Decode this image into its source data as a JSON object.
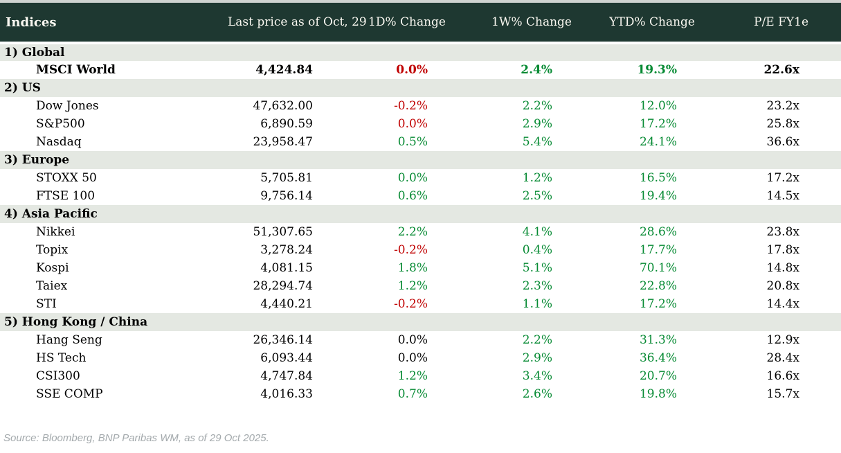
{
  "table": {
    "columns": [
      "Indices",
      "Last price as of Oct, 29",
      "1D% Change",
      "1W% Change",
      "YTD% Change",
      "P/E FY1e"
    ],
    "sections": [
      {
        "label": "1) Global",
        "rows": [
          {
            "name": "MSCI World",
            "bold": true,
            "price": "4,424.84",
            "d1": {
              "value": "0.0%",
              "trend": "down"
            },
            "w1": {
              "value": "2.4%",
              "trend": "up"
            },
            "ytd": {
              "value": "19.3%",
              "trend": "up"
            },
            "pe": "22.6x"
          }
        ]
      },
      {
        "label": "2) US",
        "rows": [
          {
            "name": "Dow Jones",
            "bold": false,
            "price": "47,632.00",
            "d1": {
              "value": "-0.2%",
              "trend": "down"
            },
            "w1": {
              "value": "2.2%",
              "trend": "up"
            },
            "ytd": {
              "value": "12.0%",
              "trend": "up"
            },
            "pe": "23.2x"
          },
          {
            "name": "S&P500",
            "bold": false,
            "price": "6,890.59",
            "d1": {
              "value": "0.0%",
              "trend": "down"
            },
            "w1": {
              "value": "2.9%",
              "trend": "up"
            },
            "ytd": {
              "value": "17.2%",
              "trend": "up"
            },
            "pe": "25.8x"
          },
          {
            "name": "Nasdaq",
            "bold": false,
            "price": "23,958.47",
            "d1": {
              "value": "0.5%",
              "trend": "up"
            },
            "w1": {
              "value": "5.4%",
              "trend": "up"
            },
            "ytd": {
              "value": "24.1%",
              "trend": "up"
            },
            "pe": "36.6x"
          }
        ]
      },
      {
        "label": "3) Europe",
        "rows": [
          {
            "name": "STOXX 50",
            "bold": false,
            "price": "5,705.81",
            "d1": {
              "value": "0.0%",
              "trend": "up"
            },
            "w1": {
              "value": "1.2%",
              "trend": "up"
            },
            "ytd": {
              "value": "16.5%",
              "trend": "up"
            },
            "pe": "17.2x"
          },
          {
            "name": "FTSE 100",
            "bold": false,
            "price": "9,756.14",
            "d1": {
              "value": "0.6%",
              "trend": "up"
            },
            "w1": {
              "value": "2.5%",
              "trend": "up"
            },
            "ytd": {
              "value": "19.4%",
              "trend": "up"
            },
            "pe": "14.5x"
          }
        ]
      },
      {
        "label": "4) Asia Pacific",
        "rows": [
          {
            "name": "Nikkei",
            "bold": false,
            "price": "51,307.65",
            "d1": {
              "value": "2.2%",
              "trend": "up"
            },
            "w1": {
              "value": "4.1%",
              "trend": "up"
            },
            "ytd": {
              "value": "28.6%",
              "trend": "up"
            },
            "pe": "23.8x"
          },
          {
            "name": "Topix",
            "bold": false,
            "price": "3,278.24",
            "d1": {
              "value": "-0.2%",
              "trend": "down"
            },
            "w1": {
              "value": "0.4%",
              "trend": "up"
            },
            "ytd": {
              "value": "17.7%",
              "trend": "up"
            },
            "pe": "17.8x"
          },
          {
            "name": "Kospi",
            "bold": false,
            "price": "4,081.15",
            "d1": {
              "value": "1.8%",
              "trend": "up"
            },
            "w1": {
              "value": "5.1%",
              "trend": "up"
            },
            "ytd": {
              "value": "70.1%",
              "trend": "up"
            },
            "pe": "14.8x"
          },
          {
            "name": "Taiex",
            "bold": false,
            "price": "28,294.74",
            "d1": {
              "value": "1.2%",
              "trend": "up"
            },
            "w1": {
              "value": "2.3%",
              "trend": "up"
            },
            "ytd": {
              "value": "22.8%",
              "trend": "up"
            },
            "pe": "20.8x"
          },
          {
            "name": "STI",
            "bold": false,
            "price": "4,440.21",
            "d1": {
              "value": "-0.2%",
              "trend": "down"
            },
            "w1": {
              "value": "1.1%",
              "trend": "up"
            },
            "ytd": {
              "value": "17.2%",
              "trend": "up"
            },
            "pe": "14.4x"
          }
        ]
      },
      {
        "label": "5) Hong Kong / China",
        "rows": [
          {
            "name": "Hang Seng",
            "bold": false,
            "price": "26,346.14",
            "d1": {
              "value": "0.0%",
              "trend": "flat"
            },
            "w1": {
              "value": "2.2%",
              "trend": "up"
            },
            "ytd": {
              "value": "31.3%",
              "trend": "up"
            },
            "pe": "12.9x"
          },
          {
            "name": "HS Tech",
            "bold": false,
            "price": "6,093.44",
            "d1": {
              "value": "0.0%",
              "trend": "flat"
            },
            "w1": {
              "value": "2.9%",
              "trend": "up"
            },
            "ytd": {
              "value": "36.4%",
              "trend": "up"
            },
            "pe": "28.4x"
          },
          {
            "name": "CSI300",
            "bold": false,
            "price": "4,747.84",
            "d1": {
              "value": "1.2%",
              "trend": "up"
            },
            "w1": {
              "value": "3.4%",
              "trend": "up"
            },
            "ytd": {
              "value": "20.7%",
              "trend": "up"
            },
            "pe": "16.6x"
          },
          {
            "name": "SSE COMP",
            "bold": false,
            "price": "4,016.33",
            "d1": {
              "value": "0.7%",
              "trend": "up"
            },
            "w1": {
              "value": "2.6%",
              "trend": "up"
            },
            "ytd": {
              "value": "19.8%",
              "trend": "up"
            },
            "pe": "15.7x"
          }
        ]
      }
    ]
  },
  "footer": {
    "source": "Source: Bloomberg, BNP Paribas WM, as of 29 Oct 2025."
  },
  "colors": {
    "header_bg": "#1E3831",
    "header_text": "#FAF8F1",
    "top_bar": "#CFD3D0",
    "section_bg": "#E4E8E2",
    "positive": "#068A33",
    "negative": "#C00000",
    "neutral": "#000000",
    "source_text": "#A3A9AC"
  }
}
